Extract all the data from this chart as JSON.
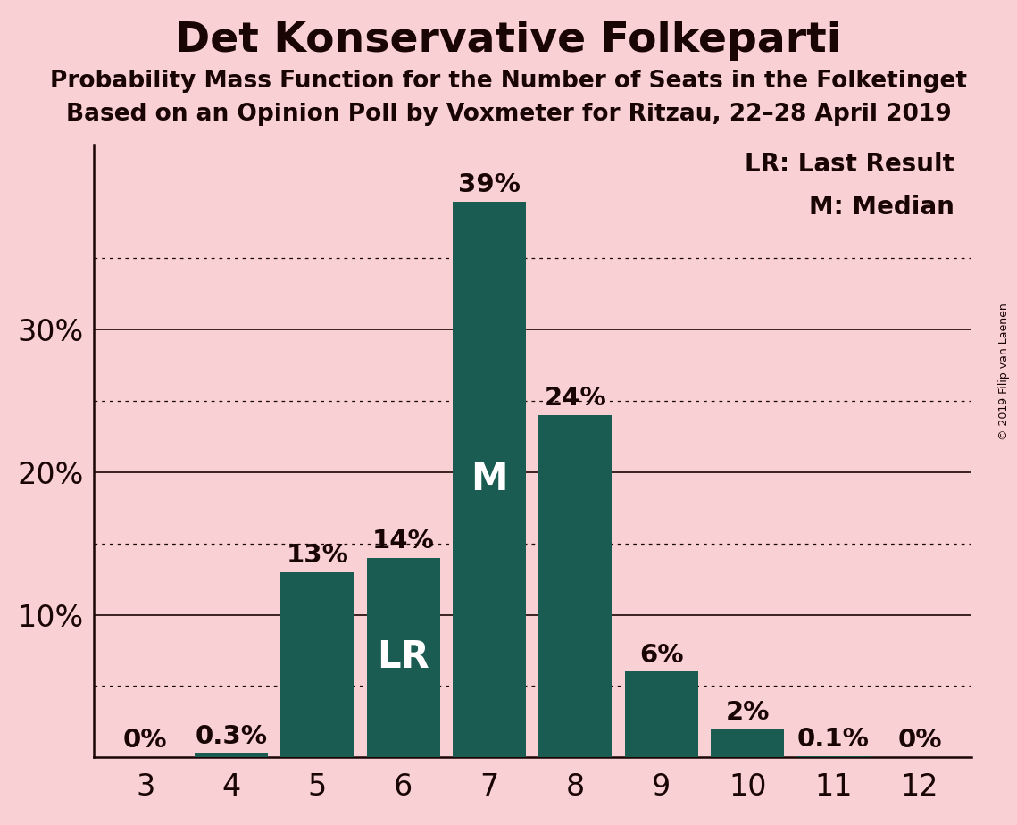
{
  "title": "Det Konservative Folkeparti",
  "subtitle1": "Probability Mass Function for the Number of Seats in the Folketinget",
  "subtitle2": "Based on an Opinion Poll by Voxmeter for Ritzau, 22–28 April 2019",
  "copyright": "© 2019 Filip van Laenen",
  "categories": [
    3,
    4,
    5,
    6,
    7,
    8,
    9,
    10,
    11,
    12
  ],
  "values": [
    0.0,
    0.3,
    13.0,
    14.0,
    39.0,
    24.0,
    6.0,
    2.0,
    0.1,
    0.0
  ],
  "labels": [
    "0%",
    "0.3%",
    "13%",
    "14%",
    "39%",
    "24%",
    "6%",
    "2%",
    "0.1%",
    "0%"
  ],
  "bar_color": "#1a5c52",
  "background_color": "#f9d0d3",
  "text_color": "#1a0505",
  "lr_bar": 6,
  "median_bar": 7,
  "ylim": [
    0,
    43
  ],
  "yticks": [
    10,
    20,
    30
  ],
  "dotted_gridlines": [
    5,
    15,
    25,
    35
  ],
  "legend_lr": "LR: Last Result",
  "legend_m": "M: Median",
  "title_fontsize": 34,
  "subtitle_fontsize": 19,
  "tick_fontsize": 24,
  "bar_label_fontsize": 21,
  "bar_inner_label_fontsize": 30,
  "legend_fontsize": 20,
  "copyright_fontsize": 9
}
